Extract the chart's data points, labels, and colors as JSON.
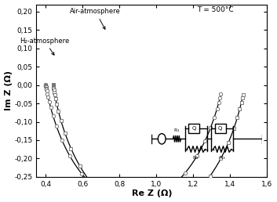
{
  "xlabel": "Re Z (Ω)",
  "ylabel": "Im Z (Ω)",
  "xlim": [
    0.35,
    1.6
  ],
  "ylim": [
    -0.25,
    0.22
  ],
  "xticks": [
    0.4,
    0.6,
    0.8,
    1.0,
    1.2,
    1.4,
    1.6
  ],
  "yticks": [
    -0.25,
    -0.2,
    -0.15,
    -0.1,
    -0.05,
    0.0,
    0.05,
    0.1,
    0.15,
    0.2
  ],
  "label_air": "Air-atmosphere",
  "label_h2": "H₂-atmosphere",
  "label_T": "T = 500°C",
  "background_color": "#ffffff",
  "line_color": "#000000",
  "marker_edge_color": "#666666"
}
